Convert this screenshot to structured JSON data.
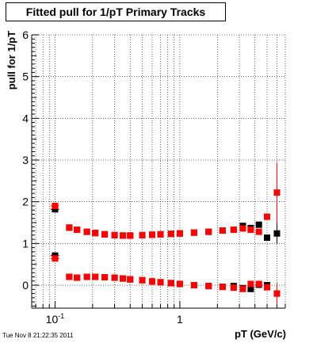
{
  "title": "Fitted pull for 1/pT  Primary Tracks",
  "timestamp": "Tue Nov  8 21:22:35 2011",
  "colors": {
    "series_black": "#000000",
    "series_red": "#ff0000",
    "grid": "#000000"
  },
  "chart_data": {
    "type": "scatter",
    "title": "Fitted pull for 1/pT  Primary Tracks",
    "xlabel": "pT (GeV/c)",
    "ylabel": "pull for 1/pT",
    "xscale": "log",
    "xlim": [
      0.065,
      7.0
    ],
    "ylim": [
      -0.55,
      6.0
    ],
    "grid": true,
    "legend": "none",
    "y_ticks": [
      0,
      1,
      2,
      3,
      4,
      5,
      6
    ],
    "x_tick_labels": [
      {
        "value": 0.1,
        "base": "10",
        "exp": "-1"
      },
      {
        "value": 1,
        "base": "1",
        "exp": ""
      }
    ],
    "series": [
      {
        "color": "#000000",
        "points": [
          {
            "group": "upper",
            "x": 0.1,
            "y": 1.82,
            "xerr": 0.008
          },
          {
            "group": "upper",
            "x": 0.13,
            "y": 1.38
          },
          {
            "group": "upper",
            "x": 0.15,
            "y": 1.33
          },
          {
            "group": "upper",
            "x": 0.18,
            "y": 1.28
          },
          {
            "group": "upper",
            "x": 0.21,
            "y": 1.25
          },
          {
            "group": "upper",
            "x": 0.25,
            "y": 1.22
          },
          {
            "group": "upper",
            "x": 0.3,
            "y": 1.2
          },
          {
            "group": "upper",
            "x": 0.35,
            "y": 1.19
          },
          {
            "group": "upper",
            "x": 0.4,
            "y": 1.19
          },
          {
            "group": "upper",
            "x": 0.5,
            "y": 1.2
          },
          {
            "group": "upper",
            "x": 0.6,
            "y": 1.21
          },
          {
            "group": "upper",
            "x": 0.7,
            "y": 1.22
          },
          {
            "group": "upper",
            "x": 0.85,
            "y": 1.23
          },
          {
            "group": "upper",
            "x": 1.0,
            "y": 1.24
          },
          {
            "group": "upper",
            "x": 1.3,
            "y": 1.26
          },
          {
            "group": "upper",
            "x": 1.7,
            "y": 1.28
          },
          {
            "group": "upper",
            "x": 2.2,
            "y": 1.31
          },
          {
            "group": "upper",
            "x": 2.7,
            "y": 1.33
          },
          {
            "group": "upper",
            "x": 3.2,
            "y": 1.42
          },
          {
            "group": "upper",
            "x": 3.7,
            "y": 1.37
          },
          {
            "group": "upper",
            "x": 4.3,
            "y": 1.45
          },
          {
            "group": "upper",
            "x": 5.0,
            "y": 1.14
          },
          {
            "group": "upper",
            "x": 6.0,
            "y": 1.24,
            "yerr": 0.25
          },
          {
            "group": "lower",
            "x": 0.1,
            "y": 0.71,
            "xerr": 0.008
          },
          {
            "group": "lower",
            "x": 0.13,
            "y": 0.2
          },
          {
            "group": "lower",
            "x": 0.15,
            "y": 0.18
          },
          {
            "group": "lower",
            "x": 0.18,
            "y": 0.2
          },
          {
            "group": "lower",
            "x": 0.21,
            "y": 0.2
          },
          {
            "group": "lower",
            "x": 0.25,
            "y": 0.19
          },
          {
            "group": "lower",
            "x": 0.3,
            "y": 0.18
          },
          {
            "group": "lower",
            "x": 0.35,
            "y": 0.16
          },
          {
            "group": "lower",
            "x": 0.4,
            "y": 0.14
          },
          {
            "group": "lower",
            "x": 0.5,
            "y": 0.12
          },
          {
            "group": "lower",
            "x": 0.6,
            "y": 0.09
          },
          {
            "group": "lower",
            "x": 0.7,
            "y": 0.07
          },
          {
            "group": "lower",
            "x": 0.85,
            "y": 0.05
          },
          {
            "group": "lower",
            "x": 1.0,
            "y": 0.03
          },
          {
            "group": "lower",
            "x": 1.3,
            "y": 0.0
          },
          {
            "group": "lower",
            "x": 1.7,
            "y": -0.02
          },
          {
            "group": "lower",
            "x": 2.2,
            "y": -0.04
          },
          {
            "group": "lower",
            "x": 2.7,
            "y": -0.02
          },
          {
            "group": "lower",
            "x": 3.2,
            "y": -0.07
          },
          {
            "group": "lower",
            "x": 3.7,
            "y": -0.09
          },
          {
            "group": "lower",
            "x": 4.3,
            "y": 0.01
          },
          {
            "group": "lower",
            "x": 5.0,
            "y": 0.0
          },
          {
            "group": "lower",
            "x": 6.0,
            "y": -0.2
          }
        ]
      },
      {
        "color": "#ff0000",
        "points": [
          {
            "group": "upper",
            "x": 0.1,
            "y": 1.9,
            "xerr": 0.008
          },
          {
            "group": "upper",
            "x": 0.13,
            "y": 1.38
          },
          {
            "group": "upper",
            "x": 0.15,
            "y": 1.33
          },
          {
            "group": "upper",
            "x": 0.18,
            "y": 1.28
          },
          {
            "group": "upper",
            "x": 0.21,
            "y": 1.25
          },
          {
            "group": "upper",
            "x": 0.25,
            "y": 1.22
          },
          {
            "group": "upper",
            "x": 0.3,
            "y": 1.2
          },
          {
            "group": "upper",
            "x": 0.35,
            "y": 1.19
          },
          {
            "group": "upper",
            "x": 0.4,
            "y": 1.19
          },
          {
            "group": "upper",
            "x": 0.5,
            "y": 1.2
          },
          {
            "group": "upper",
            "x": 0.6,
            "y": 1.21
          },
          {
            "group": "upper",
            "x": 0.7,
            "y": 1.22
          },
          {
            "group": "upper",
            "x": 0.85,
            "y": 1.23
          },
          {
            "group": "upper",
            "x": 1.0,
            "y": 1.24
          },
          {
            "group": "upper",
            "x": 1.3,
            "y": 1.26
          },
          {
            "group": "upper",
            "x": 1.7,
            "y": 1.28
          },
          {
            "group": "upper",
            "x": 2.2,
            "y": 1.31
          },
          {
            "group": "upper",
            "x": 2.7,
            "y": 1.33
          },
          {
            "group": "upper",
            "x": 3.2,
            "y": 1.36
          },
          {
            "group": "upper",
            "x": 3.7,
            "y": 1.33
          },
          {
            "group": "upper",
            "x": 4.3,
            "y": 1.28
          },
          {
            "group": "upper",
            "x": 5.0,
            "y": 1.64
          },
          {
            "group": "upper",
            "x": 6.0,
            "y": 2.22,
            "yerr": 0.72
          },
          {
            "group": "lower",
            "x": 0.1,
            "y": 0.64,
            "xerr": 0.008
          },
          {
            "group": "lower",
            "x": 0.13,
            "y": 0.2
          },
          {
            "group": "lower",
            "x": 0.15,
            "y": 0.18
          },
          {
            "group": "lower",
            "x": 0.18,
            "y": 0.2
          },
          {
            "group": "lower",
            "x": 0.21,
            "y": 0.2
          },
          {
            "group": "lower",
            "x": 0.25,
            "y": 0.19
          },
          {
            "group": "lower",
            "x": 0.3,
            "y": 0.18
          },
          {
            "group": "lower",
            "x": 0.35,
            "y": 0.16
          },
          {
            "group": "lower",
            "x": 0.4,
            "y": 0.14
          },
          {
            "group": "lower",
            "x": 0.5,
            "y": 0.12
          },
          {
            "group": "lower",
            "x": 0.6,
            "y": 0.09
          },
          {
            "group": "lower",
            "x": 0.7,
            "y": 0.07
          },
          {
            "group": "lower",
            "x": 0.85,
            "y": 0.05
          },
          {
            "group": "lower",
            "x": 1.0,
            "y": 0.03
          },
          {
            "group": "lower",
            "x": 1.3,
            "y": 0.0
          },
          {
            "group": "lower",
            "x": 1.7,
            "y": -0.02
          },
          {
            "group": "lower",
            "x": 2.2,
            "y": -0.04
          },
          {
            "group": "lower",
            "x": 2.7,
            "y": -0.06
          },
          {
            "group": "lower",
            "x": 3.2,
            "y": -0.09
          },
          {
            "group": "lower",
            "x": 3.7,
            "y": 0.03
          },
          {
            "group": "lower",
            "x": 4.3,
            "y": 0.03
          },
          {
            "group": "lower",
            "x": 5.0,
            "y": -0.05
          },
          {
            "group": "lower",
            "x": 6.0,
            "y": -0.2,
            "yerr": 0.25
          }
        ]
      }
    ]
  }
}
